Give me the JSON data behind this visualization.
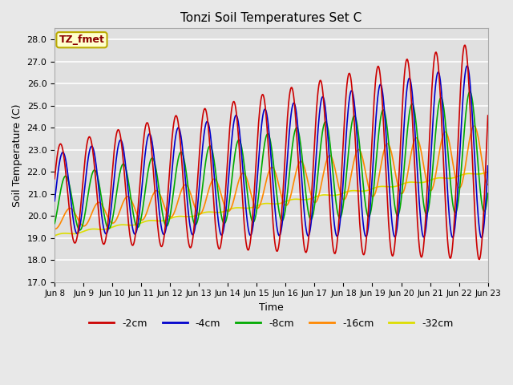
{
  "title": "Tonzi Soil Temperatures Set C",
  "xlabel": "Time",
  "ylabel": "Soil Temperature (C)",
  "ylim": [
    17.0,
    28.5
  ],
  "yticks": [
    17.0,
    18.0,
    19.0,
    20.0,
    21.0,
    22.0,
    23.0,
    24.0,
    25.0,
    26.0,
    27.0,
    28.0
  ],
  "bg_color": "#e8e8e8",
  "legend_label": "TZ_fmet",
  "series": {
    "-2cm": {
      "color": "#cc0000",
      "lw": 1.2
    },
    "-4cm": {
      "color": "#0000cc",
      "lw": 1.2
    },
    "-8cm": {
      "color": "#00aa00",
      "lw": 1.2
    },
    "-16cm": {
      "color": "#ff8800",
      "lw": 1.2
    },
    "-32cm": {
      "color": "#dddd00",
      "lw": 1.2
    }
  },
  "xtick_labels": [
    "Jun 8",
    "Jun 9",
    "Jun 10",
    "Jun 11",
    "Jun 12",
    "Jun 13",
    "Jun 14",
    "Jun 15",
    "Jun 16",
    "Jun 17",
    "Jun 18",
    "Jun 19",
    "Jun 20",
    "Jun 21",
    "Jun 22",
    "Jun 23"
  ],
  "xtick_positions": [
    0,
    48,
    96,
    144,
    192,
    240,
    288,
    336,
    384,
    432,
    480,
    528,
    576,
    624,
    672,
    720
  ]
}
